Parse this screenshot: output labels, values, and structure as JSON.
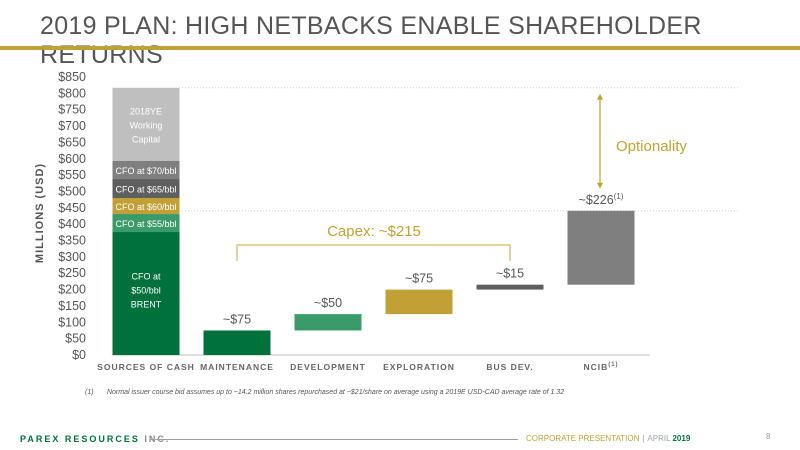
{
  "title": "2019 PLAN: HIGH NETBACKS ENABLE SHAREHOLDER RETURNS",
  "colors": {
    "dark_green": "#00703c",
    "mid_green": "#3a9a6a",
    "gold": "#c1a136",
    "dark_grey": "#5f5f5f",
    "mid_grey": "#7f7f7f",
    "light_grey": "#bfbfbf",
    "title_grey": "#555555"
  },
  "chart_data": {
    "type": "bar",
    "ylabel": "MILLIONS (USD)",
    "ylim": [
      0,
      850
    ],
    "yticks": [
      "$0",
      "$50",
      "$100",
      "$150",
      "$200",
      "$250",
      "$300",
      "$350",
      "$400",
      "$450",
      "$500",
      "$550",
      "$600",
      "$650",
      "$700",
      "$750",
      "$800",
      "$850"
    ],
    "categories": [
      "SOURCES OF CASH",
      "MAINTENANCE",
      "DEVELOPMENT",
      "EXPLORATION",
      "BUS DEV.",
      "NCIB"
    ],
    "ncib_superscript": "(1)",
    "stack": [
      {
        "name": "CFO at $50/bbl BRENT",
        "label_lines": [
          "CFO at",
          "$50/bbl",
          "BRENT"
        ],
        "from": 0,
        "to": 376
      },
      {
        "name": "CFO at $55/bbl",
        "label_lines": [
          "CFO at $55/bbl"
        ],
        "from": 376,
        "to": 431
      },
      {
        "name": "CFO at $60/bbl",
        "label_lines": [
          "CFO at $60/bbl"
        ],
        "from": 431,
        "to": 480
      },
      {
        "name": "CFO at $65/bbl",
        "label_lines": [
          "CFO at $65/bbl"
        ],
        "from": 480,
        "to": 538
      },
      {
        "name": "CFO at $70/bbl",
        "label_lines": [
          "CFO at $70/bbl"
        ],
        "from": 538,
        "to": 594
      },
      {
        "name": "2018YE Working Capital",
        "label_lines": [
          "2018YE",
          "Working",
          "Capital"
        ],
        "from": 594,
        "to": 817
      }
    ],
    "uses": [
      {
        "category": "MAINTENANCE",
        "label": "~$75",
        "from": 0,
        "to": 75
      },
      {
        "category": "DEVELOPMENT",
        "label": "~$50",
        "from": 75,
        "to": 125
      },
      {
        "category": "EXPLORATION",
        "label": "~$75",
        "from": 125,
        "to": 200
      },
      {
        "category": "BUS DEV.",
        "label": "~$15",
        "from": 200,
        "to": 215
      },
      {
        "category": "NCIB",
        "label": "~$226",
        "superscript": "(1)",
        "from": 215,
        "to": 441
      }
    ],
    "capex_label": "Capex: ~$215",
    "optionality_label": "Optionality",
    "reference_lines": [
      817,
      441
    ]
  },
  "footnote": {
    "number": "(1)",
    "text": "Normal issuer course bid assumes up to ~14.2 million shares repurchased  at ~$21/share on average using a 2019E USD-CAD average rate of 1.32"
  },
  "footer": {
    "company_brand": "PAREX RESOURCES",
    "company_suffix": "INC.",
    "presentation": "CORPORATE PRESENTATION",
    "separator": "|",
    "month": "APRIL",
    "year": "2019",
    "page": "8"
  }
}
